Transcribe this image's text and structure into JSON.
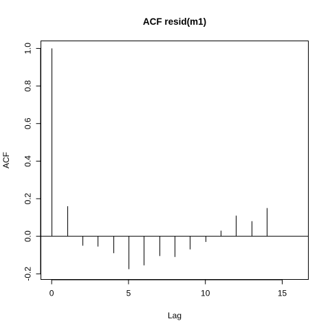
{
  "chart_data": {
    "type": "bar",
    "title": "ACF resid(m1)",
    "xlabel": "Lag",
    "ylabel": "ACF",
    "x": [
      0,
      1,
      2,
      3,
      4,
      5,
      6,
      7,
      8,
      9,
      10,
      11,
      12,
      13,
      14
    ],
    "values": [
      1.0,
      0.16,
      -0.05,
      -0.055,
      -0.09,
      -0.175,
      -0.155,
      -0.105,
      -0.11,
      -0.07,
      -0.03,
      0.03,
      0.11,
      0.08,
      0.15
    ],
    "xlim": [
      -0.7,
      16.7
    ],
    "ylim": [
      -0.23,
      1.04
    ],
    "xticks": [
      0,
      5,
      10,
      15
    ],
    "yticks": [
      -0.2,
      0.0,
      0.2,
      0.4,
      0.6,
      0.8,
      1.0
    ],
    "xtick_labels": [
      "0",
      "5",
      "10",
      "15"
    ],
    "ytick_labels": [
      "-0.2",
      "0.0",
      "0.2",
      "0.4",
      "0.6",
      "0.8",
      "1.0"
    ],
    "grid": false,
    "zero_line": true
  }
}
